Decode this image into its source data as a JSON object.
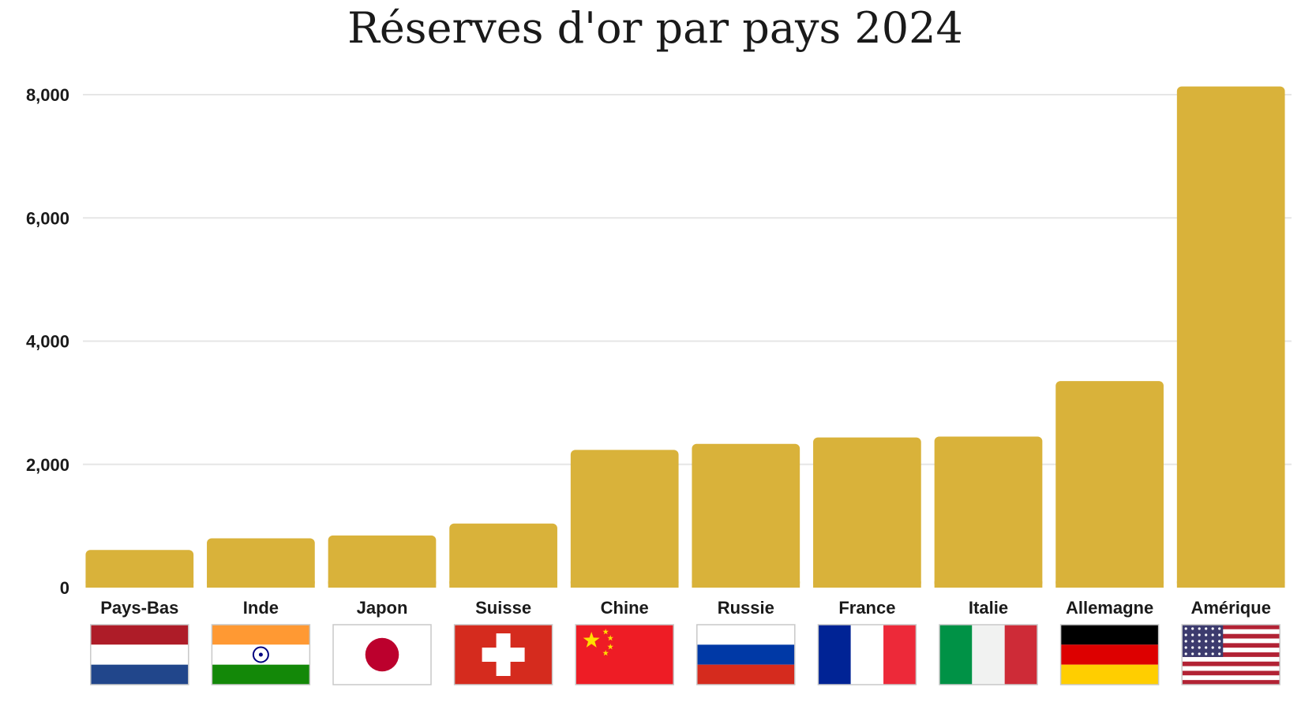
{
  "chart_data": {
    "type": "bar",
    "title": "Réserves d'or par pays 2024",
    "xlabel": "",
    "ylabel": "",
    "ylim": [
      0,
      8000
    ],
    "yticks": [
      {
        "value": 0,
        "label": "0"
      },
      {
        "value": 2000,
        "label": "2,000"
      },
      {
        "value": 4000,
        "label": "4,000"
      },
      {
        "value": 6000,
        "label": "6,000"
      },
      {
        "value": 8000,
        "label": "8,000"
      }
    ],
    "grid": true,
    "legend": "none",
    "bar_color": "#d9b23a",
    "categories": [
      "Pays-Bas",
      "Inde",
      "Japon",
      "Suisse",
      "Chine",
      "Russie",
      "France",
      "Italie",
      "Allemagne",
      "Amérique"
    ],
    "flags": [
      "netherlands-flag",
      "india-flag",
      "japan-flag",
      "switzerland-flag",
      "china-flag",
      "russia-flag",
      "france-flag",
      "italy-flag",
      "germany-flag",
      "usa-flag"
    ],
    "values": [
      612,
      800,
      846,
      1040,
      2235,
      2333,
      2437,
      2452,
      3352,
      8133
    ]
  }
}
